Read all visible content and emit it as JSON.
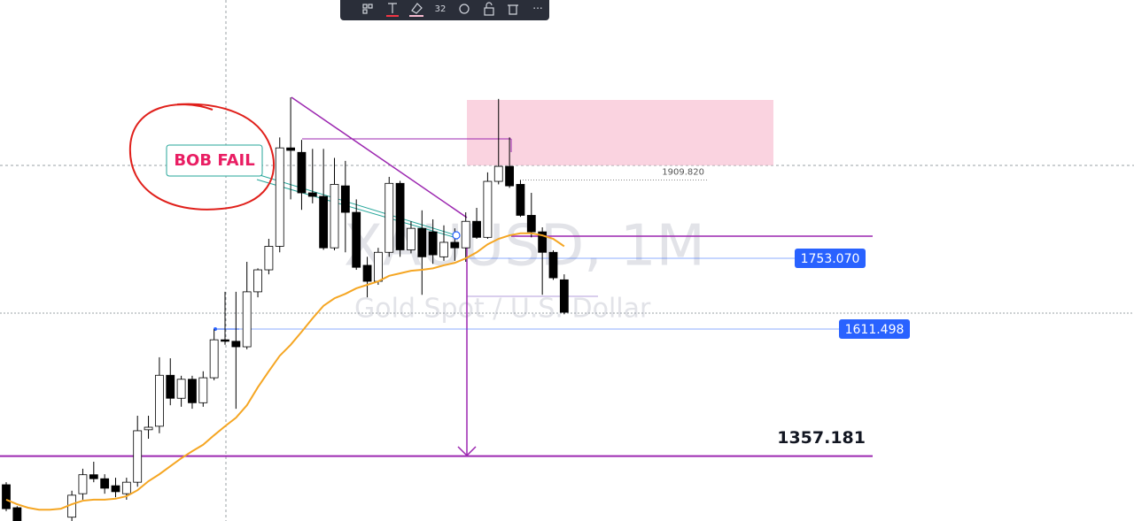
{
  "chart_data": {
    "type": "candlestick",
    "symbol": "XAUUSD, 1M",
    "description": "Gold Spot / U.S. Dollar",
    "ylim": [
      1227.4,
      2269.9
    ],
    "up_color": "#ffffff",
    "down_color": "#000000",
    "open": [
      1300,
      1254,
      1208,
      1199,
      1208,
      1211,
      1235,
      1282,
      1320,
      1312,
      1298,
      1282,
      1305,
      1410,
      1417,
      1519,
      1473,
      1511,
      1464,
      1514,
      1590,
      1587,
      1576,
      1686,
      1730,
      1777,
      1974,
      1965,
      1884,
      1877,
      1774,
      1898,
      1845,
      1739,
      1707,
      1765,
      1903,
      1770,
      1813,
      1806,
      1756,
      1785,
      1774,
      1827,
      1795,
      1907,
      1937,
      1901,
      1839,
      1806,
      1765,
      1710
    ],
    "high": [
      1305,
      1257,
      1217,
      1211,
      1215,
      1226,
      1288,
      1332,
      1346,
      1321,
      1314,
      1314,
      1438,
      1438,
      1555,
      1553,
      1518,
      1518,
      1527,
      1611,
      1686,
      1686,
      1746,
      1733,
      1792,
      1995,
      2075,
      1990,
      1972,
      1972,
      1954,
      1948,
      1871,
      1756,
      1774,
      1916,
      1908,
      1827,
      1849,
      1831,
      1819,
      1813,
      1845,
      1854,
      1925,
      2072,
      1995,
      1910,
      1884,
      1815,
      1769,
      1721
    ],
    "low": [
      1247,
      1227,
      1190,
      1187,
      1194,
      1201,
      1226,
      1270,
      1305,
      1282,
      1275,
      1270,
      1296,
      1392,
      1403,
      1459,
      1456,
      1452,
      1456,
      1509,
      1580,
      1452,
      1571,
      1675,
      1721,
      1765,
      1871,
      1850,
      1863,
      1770,
      1769,
      1765,
      1730,
      1675,
      1700,
      1756,
      1756,
      1763,
      1680,
      1742,
      1748,
      1748,
      1746,
      1792,
      1792,
      1901,
      1894,
      1836,
      1795,
      1680,
      1710,
      1641
    ],
    "close": [
      1252,
      1217,
      1199,
      1208,
      1211,
      1222,
      1279,
      1320,
      1312,
      1293,
      1286,
      1305,
      1408,
      1415,
      1519,
      1473,
      1511,
      1464,
      1514,
      1590,
      1587,
      1576,
      1686,
      1730,
      1777,
      1974,
      1969,
      1884,
      1877,
      1774,
      1901,
      1845,
      1735,
      1707,
      1765,
      1903,
      1770,
      1813,
      1756,
      1760,
      1785,
      1774,
      1827,
      1795,
      1907,
      1937,
      1898,
      1839,
      1806,
      1765,
      1714,
      1645
    ],
    "moving_average": {
      "color": "#f5a623",
      "values": [
        1270,
        1261,
        1254,
        1250,
        1250,
        1252,
        1261,
        1268,
        1270,
        1270,
        1272,
        1277,
        1289,
        1307,
        1321,
        1337,
        1353,
        1367,
        1380,
        1399,
        1417,
        1434,
        1459,
        1495,
        1527,
        1558,
        1580,
        1606,
        1633,
        1658,
        1673,
        1682,
        1693,
        1700,
        1707,
        1718,
        1723,
        1728,
        1730,
        1733,
        1739,
        1744,
        1753,
        1765,
        1781,
        1792,
        1799,
        1803,
        1803,
        1799,
        1792,
        1777
      ]
    },
    "levels": [
      {
        "value": 1909.82,
        "label": "1909.820",
        "style": "small",
        "color": "#555555"
      },
      {
        "value": 1753.07,
        "label": "1753.070",
        "style": "badge",
        "color": "#2962ff"
      },
      {
        "value": 1611.498,
        "label": "1611.498",
        "style": "badge",
        "color": "#2962ff"
      },
      {
        "value": 1357.181,
        "label": "1357.181",
        "style": "bold",
        "color": "#9c27b0"
      }
    ],
    "annotation": "BOB FAIL"
  },
  "toolbar": {
    "font_size": "32"
  }
}
